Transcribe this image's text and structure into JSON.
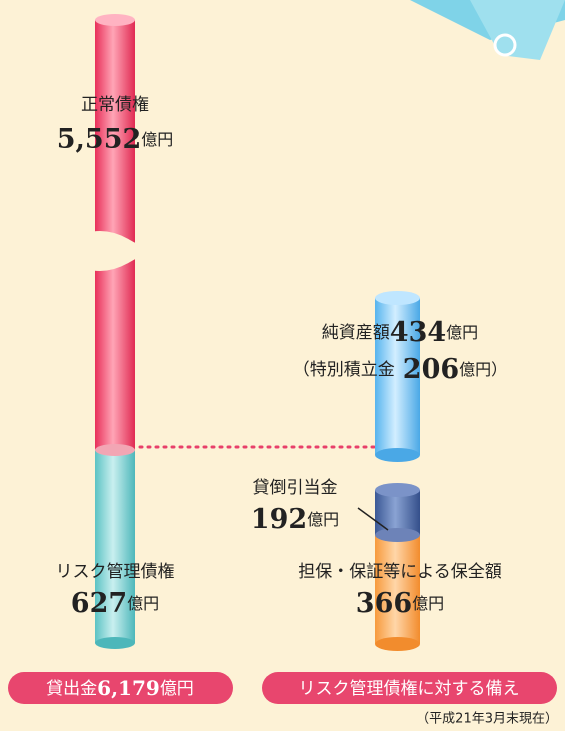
{
  "left": {
    "top": {
      "label": "正常債権",
      "value": "5,552",
      "unit": "億円"
    },
    "bottom": {
      "label": "リスク管理債権",
      "value": "627",
      "unit": "億円"
    },
    "footer": {
      "label": "貸出金",
      "value": "6,179",
      "unit": "億円"
    }
  },
  "right": {
    "net_assets": {
      "label": "純資産額",
      "value": "434",
      "unit": "億円"
    },
    "special_reserve": {
      "open": "（特別積立金",
      "value": "206",
      "unit": "億円）"
    },
    "allowance": {
      "label": "貸倒引当金",
      "value": "192",
      "unit": "億円"
    },
    "collateral": {
      "label": "担保・保証等による保全額",
      "value": "366",
      "unit": "億円"
    },
    "footer": "リスク管理債権に対する備え"
  },
  "note": "（平成21年3月末現在）"
}
